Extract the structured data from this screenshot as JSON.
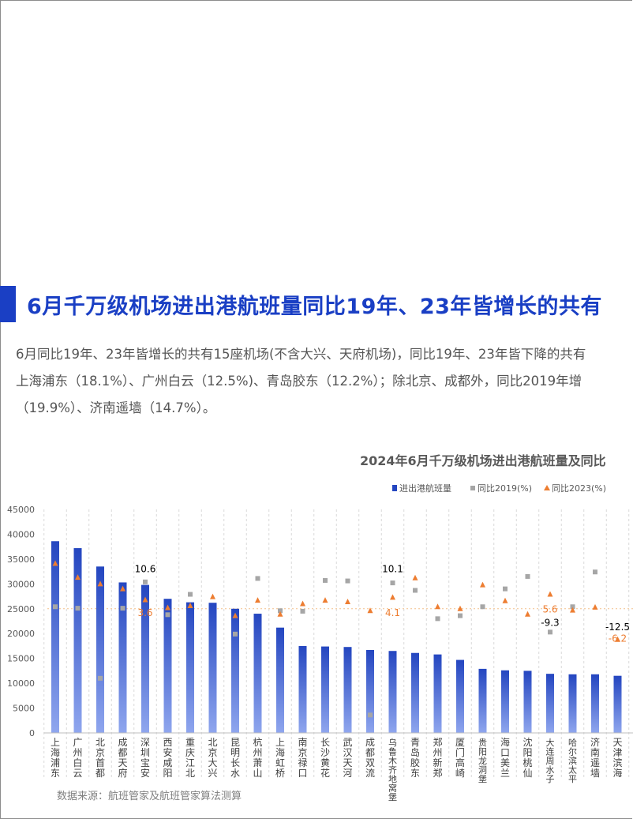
{
  "heading": "6月千万级机场进出港航班量同比19年、23年皆增长的共有",
  "paragraph_lines": [
    "6月同比19年、23年皆增长的共有15座机场(不含大兴、天府机场)，同比19年、23年皆下降的共有",
    "上海浦东（18.1%）、广州白云（12.5%)、青岛胶东（12.2%）；除北京、成都外，同比2019年增",
    "（19.9%）、济南遥墙（14.7%）。"
  ],
  "source": "数据来源：航班管家及航班管家算法测算",
  "colors": {
    "accent": "#1a3fc4",
    "bar": "#2446c0",
    "square": "#a6a6a6",
    "triangle": "#ed7d31"
  },
  "chart_data": {
    "type": "bar",
    "title": "2024年6月千万级机场进出港航班量及同比",
    "legend": [
      "进出港航班量",
      "同比2019(%)",
      "同比2023(%)"
    ],
    "legend_position": "top-right",
    "ylim": [
      0,
      45000
    ],
    "yticks": [
      "0",
      "5000",
      "10000",
      "15000",
      "20000",
      "25000",
      "30000",
      "35000",
      "40000",
      "45000"
    ],
    "categories": [
      "上海浦东",
      "广州白云",
      "北京首都",
      "成都天府",
      "深圳宝安",
      "西安咸阳",
      "重庆江北",
      "北京大兴",
      "昆明长水",
      "杭州萧山",
      "上海虹桥",
      "南京禄口",
      "长沙黄花",
      "武汉天河",
      "成都双流",
      "乌鲁木齐地窝堡",
      "青岛胶东",
      "郑州新郑",
      "厦门高崎",
      "贵阳龙洞堡",
      "海口美兰",
      "沈阳桃仙",
      "大连周水子",
      "哈尔滨太平",
      "济南遥墙",
      "天津滨海"
    ],
    "flights": [
      38600,
      37200,
      33500,
      30300,
      29800,
      27000,
      26300,
      26200,
      25000,
      24000,
      21200,
      17500,
      17400,
      17300,
      16700,
      16500,
      16100,
      15800,
      14700,
      12900,
      12600,
      12500,
      11900,
      11800,
      11800,
      11500
    ],
    "yoy2019_marker_y": [
      25400,
      25100,
      11000,
      25100,
      30400,
      23800,
      27900,
      null,
      19900,
      31100,
      24600,
      24500,
      30700,
      30600,
      3600,
      30200,
      28700,
      23000,
      23600,
      25400,
      29000,
      31500,
      20300,
      25400,
      32400,
      null
    ],
    "yoy2023_marker_y": [
      34100,
      31300,
      30000,
      29000,
      26800,
      25200,
      25600,
      27400,
      23600,
      26700,
      23900,
      26000,
      26700,
      26400,
      24600,
      27300,
      31200,
      25400,
      25000,
      29800,
      26600,
      23900,
      27900,
      24700,
      25300,
      18800
    ],
    "reference_line_y": 25000,
    "data_labels": [
      {
        "category": "深圳宝安",
        "text": "10.6",
        "y": 33000,
        "color": "#000000"
      },
      {
        "category": "深圳宝安",
        "text": "3.6",
        "y": 24200,
        "color": "#ed7d31"
      },
      {
        "category": "乌鲁木齐地窝堡",
        "text": "10.1",
        "y": 33000,
        "color": "#000000"
      },
      {
        "category": "乌鲁木齐地窝堡",
        "text": "4.1",
        "y": 24200,
        "color": "#ed7d31"
      },
      {
        "category": "大连周水子",
        "text": "5.6",
        "y": 24900,
        "color": "#ed7d31"
      },
      {
        "category": "大连周水子",
        "text": "-9.3",
        "y": 22200,
        "color": "#000000"
      },
      {
        "category": "天津滨海",
        "text": "-12.5",
        "y": 21300,
        "color": "#000000"
      },
      {
        "category": "天津滨海",
        "text": "-6.2",
        "y": 19000,
        "color": "#ed7d31"
      }
    ]
  }
}
